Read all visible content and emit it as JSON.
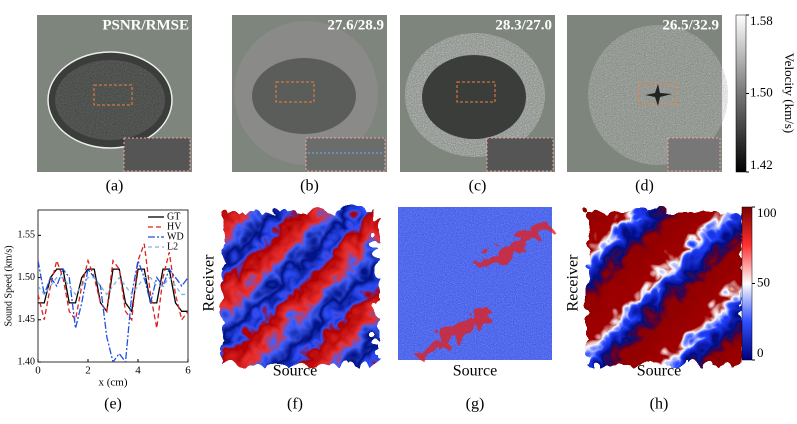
{
  "panels": [
    {
      "label": "(a)",
      "metric": "PSNR/RMSE"
    },
    {
      "label": "(b)",
      "metric": "27.6/28.9"
    },
    {
      "label": "(c)",
      "metric": "28.3/27.0"
    },
    {
      "label": "(d)",
      "metric": "26.5/32.9"
    }
  ],
  "velocity_colorbar": {
    "title": "Velocity (km/s)",
    "ticks": [
      1.58,
      {
        "value": 1.5,
        "label": "1.50"
      },
      1.42
    ]
  },
  "misfit_panels": [
    {
      "label": "(f)"
    },
    {
      "label": "(g)"
    },
    {
      "label": "(h)"
    }
  ],
  "misfit_colorbar": {
    "ticks": [
      100,
      50,
      0
    ]
  },
  "axis_names": {
    "receiver": "Receiver",
    "source": "Source"
  },
  "chart_data": {
    "type": "line",
    "label": "(e)",
    "xlabel": "x (cm)",
    "ylabel": "Sound Speed (km/s)",
    "x": [
      0,
      0.25,
      0.5,
      0.75,
      1,
      1.25,
      1.5,
      1.75,
      2,
      2.25,
      2.5,
      2.75,
      3,
      3.25,
      3.5,
      3.75,
      4,
      4.25,
      4.5,
      4.75,
      5,
      5.25,
      5.5,
      5.75,
      6
    ],
    "xlim": [
      0,
      6
    ],
    "xticks": [
      0,
      2,
      4,
      6
    ],
    "ylim": [
      1.4,
      1.58
    ],
    "yticks": [
      {
        "value": 1.4,
        "label": "1.40"
      },
      1.45,
      {
        "value": 1.5,
        "label": "1.50"
      },
      1.55
    ],
    "legend": "upper right",
    "series": [
      {
        "name": "GT",
        "color": "#000000",
        "dash": "none",
        "values": [
          1.47,
          1.47,
          1.5,
          1.51,
          1.51,
          1.47,
          1.47,
          1.5,
          1.51,
          1.51,
          1.47,
          1.46,
          1.51,
          1.51,
          1.47,
          1.46,
          1.51,
          1.51,
          1.47,
          1.47,
          1.51,
          1.51,
          1.47,
          1.46,
          1.46
        ]
      },
      {
        "name": "HV",
        "color": "#e02020",
        "dash": "5 3",
        "values": [
          1.48,
          1.45,
          1.49,
          1.52,
          1.5,
          1.46,
          1.45,
          1.49,
          1.52,
          1.5,
          1.47,
          1.46,
          1.52,
          1.51,
          1.46,
          1.45,
          1.52,
          1.54,
          1.48,
          1.44,
          1.5,
          1.53,
          1.48,
          1.45,
          1.46
        ]
      },
      {
        "name": "WD",
        "color": "#2050e0",
        "dash": "7 2 2 2",
        "values": [
          1.52,
          1.48,
          1.5,
          1.49,
          1.51,
          1.5,
          1.44,
          1.47,
          1.51,
          1.5,
          1.49,
          1.43,
          1.4,
          1.41,
          1.4,
          1.48,
          1.52,
          1.5,
          1.47,
          1.5,
          1.49,
          1.51,
          1.5,
          1.49,
          1.5
        ]
      },
      {
        "name": "L2",
        "color": "#7fb2e0",
        "dash": "4 3",
        "values": [
          1.49,
          1.48,
          1.49,
          1.5,
          1.5,
          1.49,
          1.48,
          1.49,
          1.5,
          1.5,
          1.49,
          1.48,
          1.49,
          1.5,
          1.49,
          1.48,
          1.49,
          1.5,
          1.5,
          1.49,
          1.49,
          1.5,
          1.49,
          1.48,
          1.48
        ]
      }
    ]
  }
}
